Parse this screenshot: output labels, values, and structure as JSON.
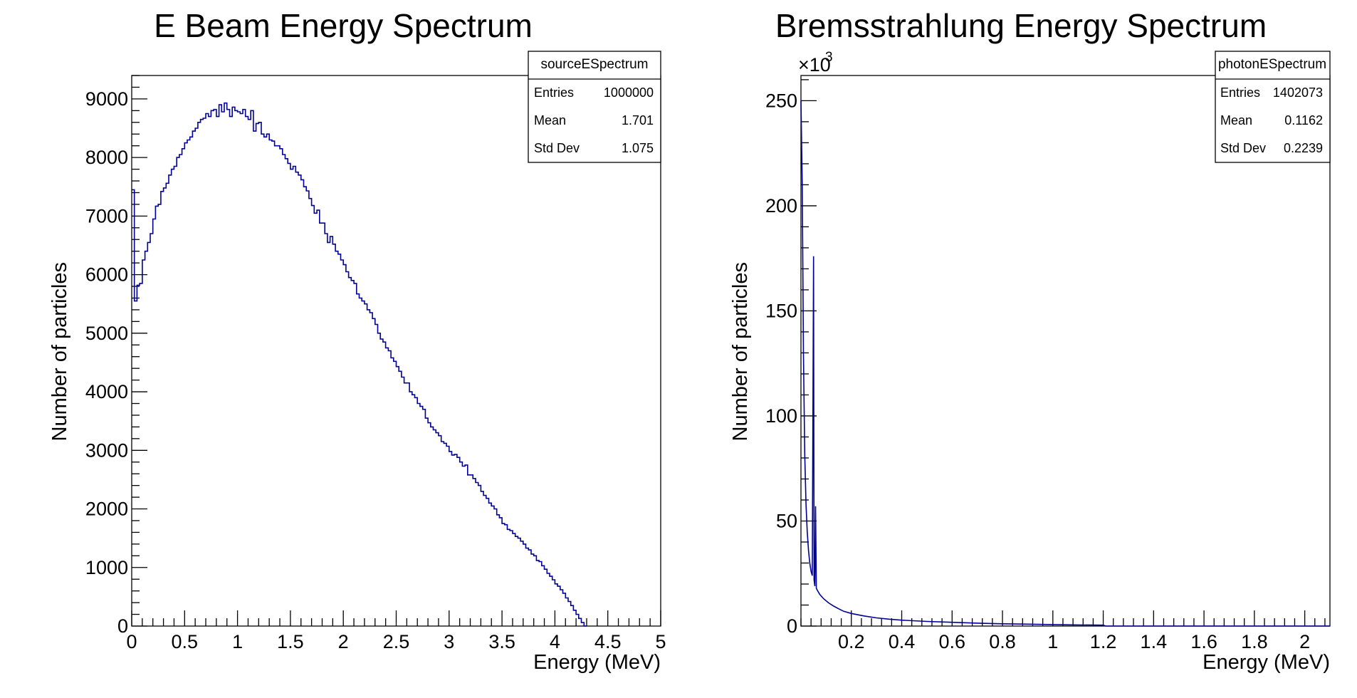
{
  "chart_data": [
    {
      "type": "histogram",
      "title": "E Beam Energy Spectrum",
      "xlabel": "Energy (MeV)",
      "ylabel": "Number of particles",
      "xlim": [
        0,
        5
      ],
      "ylim": [
        0,
        9400
      ],
      "grid": false,
      "line_color": "#000099",
      "x_ticks": [
        "0",
        "0.5",
        "1",
        "1.5",
        "2",
        "2.5",
        "3",
        "3.5",
        "4",
        "4.5",
        "5"
      ],
      "y_ticks": [
        "0",
        "1000",
        "2000",
        "3000",
        "4000",
        "5000",
        "6000",
        "7000",
        "8000",
        "9000"
      ],
      "bin_width": 0.025,
      "x_start": 0,
      "values": [
        7450,
        5550,
        5820,
        5850,
        6250,
        6400,
        6550,
        6700,
        6950,
        7170,
        7200,
        7420,
        7480,
        7560,
        7700,
        7800,
        7850,
        8000,
        8050,
        8150,
        8250,
        8300,
        8350,
        8450,
        8500,
        8600,
        8650,
        8670,
        8750,
        8700,
        8800,
        8820,
        8700,
        8900,
        8780,
        8930,
        8820,
        8700,
        8860,
        8800,
        8780,
        8750,
        8820,
        8700,
        8650,
        8800,
        8450,
        8580,
        8600,
        8400,
        8350,
        8400,
        8300,
        8280,
        8200,
        8200,
        8150,
        8050,
        7980,
        7900,
        7800,
        7850,
        7750,
        7700,
        7620,
        7500,
        7430,
        7300,
        7180,
        7050,
        7100,
        6880,
        6880,
        6700,
        6550,
        6650,
        6520,
        6400,
        6350,
        6250,
        6170,
        6050,
        5950,
        5900,
        5850,
        5670,
        5600,
        5550,
        5500,
        5400,
        5350,
        5250,
        5150,
        5000,
        4900,
        4850,
        4750,
        4700,
        4580,
        4520,
        4430,
        4350,
        4250,
        4150,
        4150,
        4000,
        3950,
        3900,
        3800,
        3750,
        3700,
        3550,
        3470,
        3400,
        3350,
        3300,
        3250,
        3150,
        3120,
        3070,
        2980,
        2920,
        2930,
        2880,
        2800,
        2730,
        2750,
        2580,
        2580,
        2520,
        2450,
        2400,
        2300,
        2230,
        2180,
        2100,
        2050,
        2000,
        1900,
        1850,
        1750,
        1730,
        1650,
        1630,
        1580,
        1530,
        1500,
        1450,
        1400,
        1330,
        1300,
        1230,
        1200,
        1120,
        1100,
        1030,
        970,
        900,
        850,
        790,
        720,
        680,
        620,
        560,
        480,
        420,
        350,
        270,
        200,
        130,
        60,
        0
      ],
      "stats": {
        "name": "sourceESpectrum",
        "rows": [
          {
            "label": "Entries",
            "value": "1000000"
          },
          {
            "label": "Mean",
            "value": "1.701"
          },
          {
            "label": "Std Dev",
            "value": "1.075"
          }
        ]
      }
    },
    {
      "type": "histogram",
      "title": "Bremsstrahlung Energy Spectrum",
      "xlabel": "Energy (MeV)",
      "ylabel": "Number of particles",
      "y_multiplier": "×10",
      "y_multiplier_exp": "3",
      "xlim": [
        0,
        2.1
      ],
      "ylim": [
        0,
        262
      ],
      "grid": false,
      "line_color": "#000099",
      "x_ticks": [
        "0.2",
        "0.4",
        "0.6",
        "0.8",
        "1",
        "1.2",
        "1.4",
        "1.6",
        "1.8",
        "2"
      ],
      "y_ticks": [
        "0",
        "50",
        "100",
        "150",
        "200",
        "250"
      ],
      "points": [
        [
          0.0,
          250
        ],
        [
          0.005,
          210
        ],
        [
          0.01,
          130
        ],
        [
          0.015,
          82
        ],
        [
          0.02,
          58
        ],
        [
          0.025,
          45
        ],
        [
          0.03,
          36
        ],
        [
          0.035,
          30
        ],
        [
          0.04,
          26
        ],
        [
          0.045,
          24
        ],
        [
          0.05,
          176
        ],
        [
          0.052,
          22
        ],
        [
          0.055,
          19
        ],
        [
          0.058,
          57
        ],
        [
          0.061,
          18
        ],
        [
          0.065,
          17
        ],
        [
          0.075,
          15
        ],
        [
          0.09,
          13
        ],
        [
          0.11,
          11
        ],
        [
          0.13,
          9.5
        ],
        [
          0.15,
          8.2
        ],
        [
          0.17,
          7
        ],
        [
          0.2,
          6
        ],
        [
          0.25,
          4.8
        ],
        [
          0.3,
          3.9
        ],
        [
          0.35,
          3.3
        ],
        [
          0.4,
          2.8
        ],
        [
          0.5,
          2.2
        ],
        [
          0.6,
          1.8
        ],
        [
          0.7,
          1.4
        ],
        [
          0.8,
          1.1
        ],
        [
          0.9,
          0.9
        ],
        [
          1.0,
          0.7
        ],
        [
          1.1,
          0.55
        ],
        [
          1.2,
          0.45
        ],
        [
          1.21,
          0.0
        ],
        [
          2.1,
          0.0
        ]
      ],
      "stats": {
        "name": "photonESpectrum",
        "rows": [
          {
            "label": "Entries",
            "value": "1402073"
          },
          {
            "label": "Mean",
            "value": "0.1162"
          },
          {
            "label": "Std Dev",
            "value": "0.2239"
          }
        ]
      }
    }
  ]
}
